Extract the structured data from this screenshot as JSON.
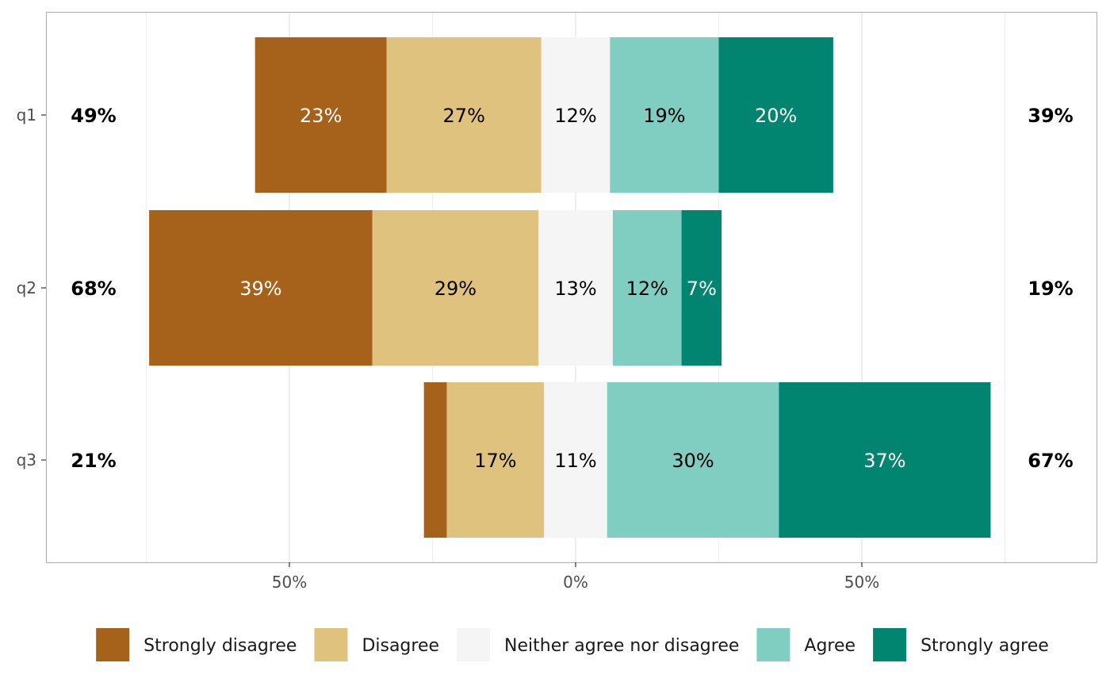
{
  "chart_data": {
    "type": "bar",
    "orientation": "horizontal",
    "stacked": "diverging",
    "categories": [
      "q1",
      "q2",
      "q3"
    ],
    "series": [
      {
        "name": "Strongly disagree",
        "color": "#a6611a",
        "values": [
          23,
          39,
          4
        ],
        "labels": [
          "23%",
          "39%",
          ""
        ]
      },
      {
        "name": "Disagree",
        "color": "#dfc27d",
        "values": [
          27,
          29,
          17
        ],
        "labels": [
          "27%",
          "29%",
          "17%"
        ]
      },
      {
        "name": "Neither agree nor disagree",
        "color": "#f5f5f5",
        "values": [
          12,
          13,
          11
        ],
        "labels": [
          "12%",
          "13%",
          "11%"
        ]
      },
      {
        "name": "Agree",
        "color": "#80cdc1",
        "values": [
          19,
          12,
          30
        ],
        "labels": [
          "19%",
          "12%",
          "30%"
        ]
      },
      {
        "name": "Strongly agree",
        "color": "#018571",
        "values": [
          20,
          7,
          37
        ],
        "labels": [
          "20%",
          "7%",
          "37%"
        ]
      }
    ],
    "left_totals": [
      "49%",
      "68%",
      "21%"
    ],
    "right_totals": [
      "39%",
      "19%",
      "67%"
    ],
    "x_ticks": [
      {
        "value": -50,
        "label": "50%"
      },
      {
        "value": 0,
        "label": "0%"
      },
      {
        "value": 50,
        "label": "50%"
      }
    ],
    "xlim": [
      -92.5,
      91.5
    ],
    "grid": true,
    "legend_position": "bottom",
    "title": "",
    "xlabel": "",
    "ylabel": ""
  }
}
